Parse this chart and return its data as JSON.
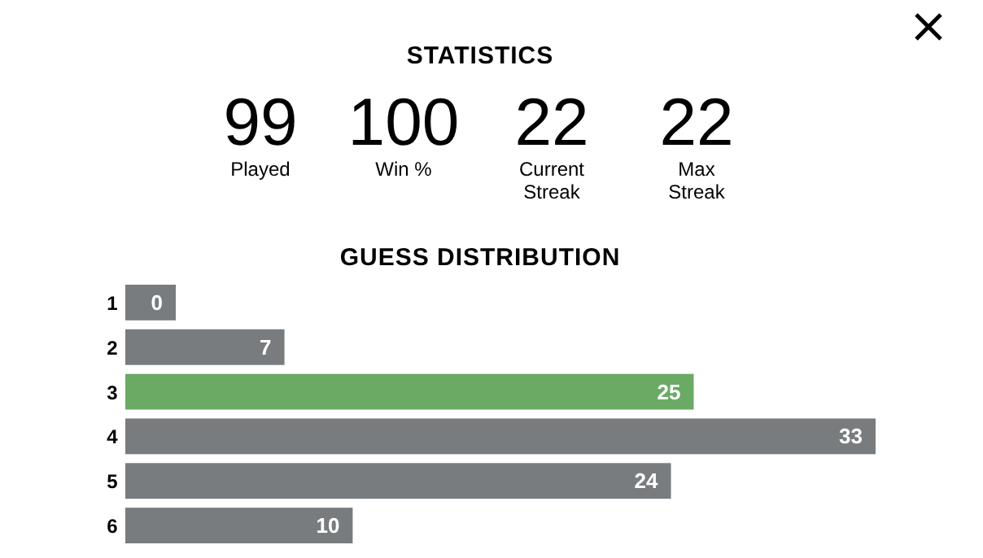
{
  "chart_data": [
    {
      "type": "other",
      "title": "STATISTICS",
      "annotations": [
        "99",
        "Played",
        "100",
        "Win %",
        "22",
        "Current Streak",
        "22",
        "Max Streak"
      ]
    },
    {
      "type": "bar",
      "orientation": "horizontal",
      "title": "GUESS DISTRIBUTION",
      "categories": [
        "1",
        "2",
        "3",
        "4",
        "5",
        "6"
      ],
      "values": [
        0,
        7,
        25,
        33,
        24,
        10
      ],
      "colors": [
        "#787c7e",
        "#787c7e",
        "#6aaa64",
        "#787c7e",
        "#787c7e",
        "#787c7e"
      ],
      "data_labels": true
    }
  ]
}
